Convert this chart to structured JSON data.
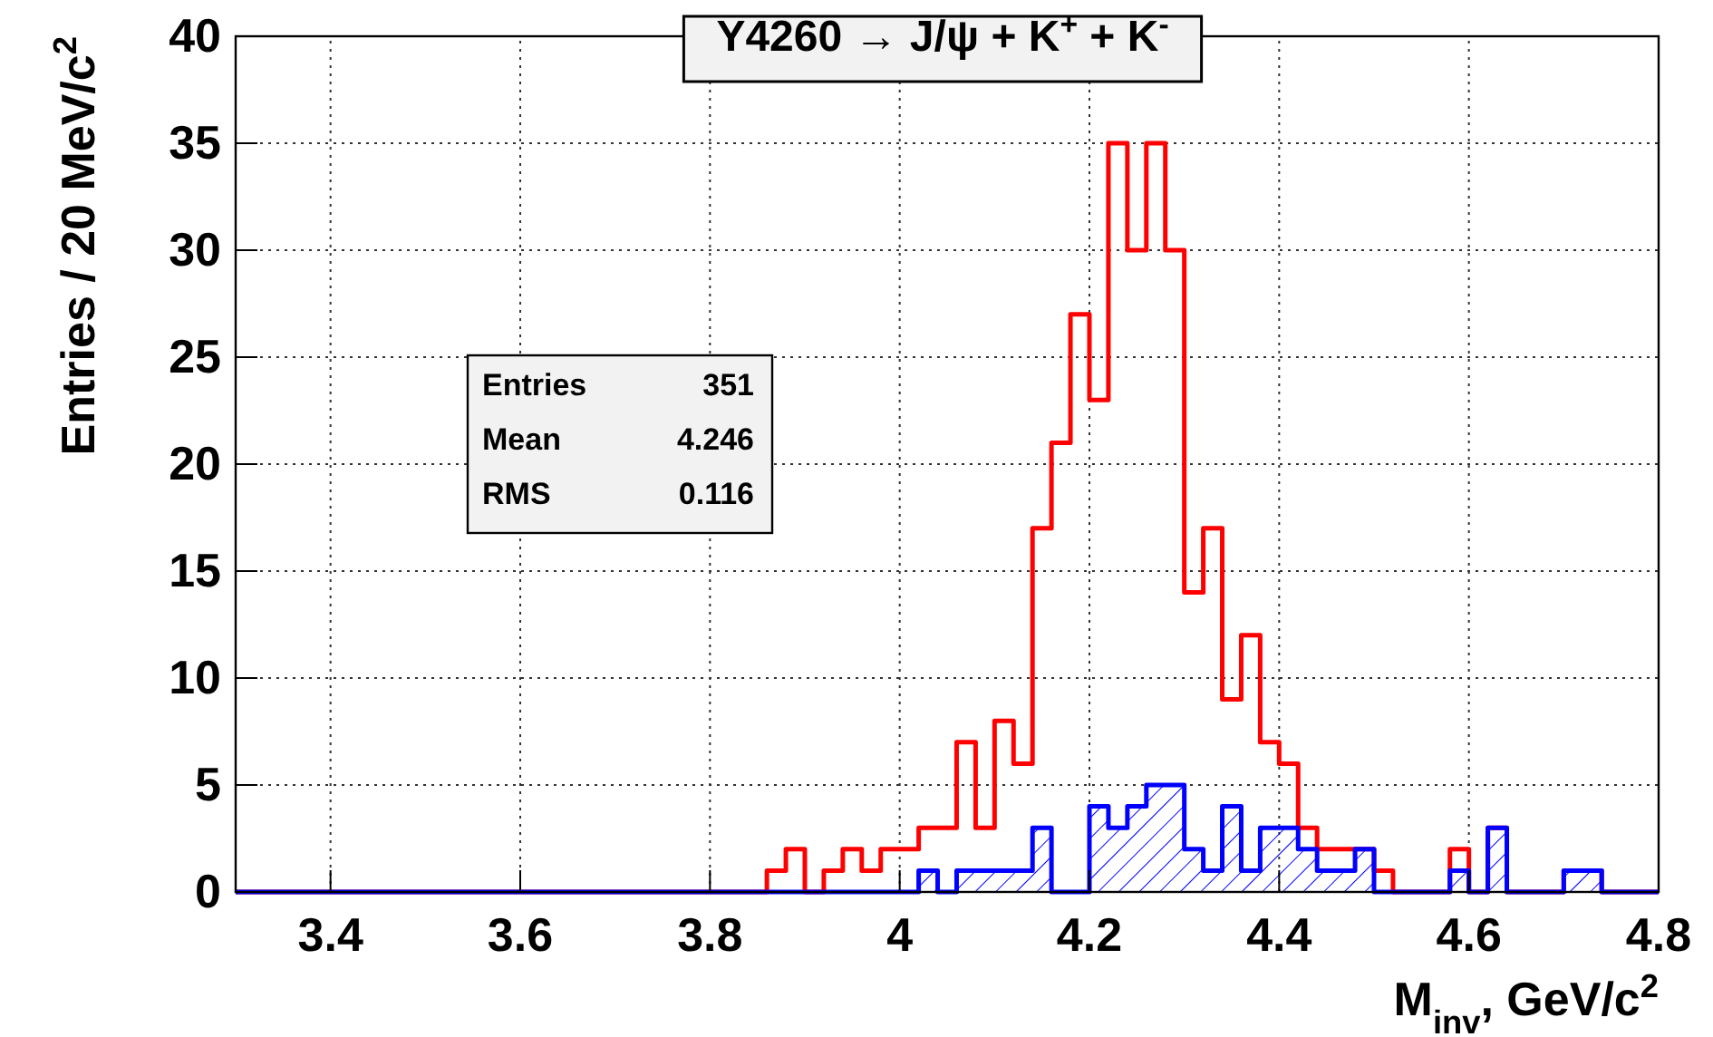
{
  "chart_data": {
    "type": "histogram",
    "title": "Y4260  → J/ψ + K$^{+}$ + K$^{-}$",
    "xlabel": "M$_{inv}$, GeV/c$^{2}$",
    "ylabel": "Entries / 20 MeV/c$^{2}$",
    "bins": [
      3.3,
      3.32,
      3.34,
      3.36,
      3.38,
      3.4,
      3.42,
      3.44,
      3.46,
      3.48,
      3.5,
      3.52,
      3.54,
      3.56,
      3.58,
      3.6,
      3.62,
      3.64,
      3.66,
      3.68,
      3.7,
      3.72,
      3.74,
      3.76,
      3.78,
      3.8,
      3.82,
      3.84,
      3.86,
      3.88,
      3.9,
      3.92,
      3.94,
      3.96,
      3.98,
      4.0,
      4.02,
      4.04,
      4.06,
      4.08,
      4.1,
      4.12,
      4.14,
      4.16,
      4.18,
      4.2,
      4.22,
      4.24,
      4.26,
      4.28,
      4.3,
      4.32,
      4.34,
      4.36,
      4.38,
      4.4,
      4.42,
      4.44,
      4.46,
      4.48,
      4.5,
      4.52,
      4.54,
      4.56,
      4.58,
      4.6,
      4.62,
      4.64,
      4.66,
      4.68,
      4.7,
      4.72,
      4.74,
      4.76,
      4.78,
      4.8
    ],
    "series": [
      {
        "color": "#ff0000",
        "values": [
          0,
          0,
          0,
          0,
          0,
          0,
          0,
          0,
          0,
          0,
          0,
          0,
          0,
          0,
          0,
          0,
          0,
          0,
          0,
          0,
          0,
          0,
          0,
          0,
          0,
          0,
          0,
          0,
          1,
          2,
          0,
          1,
          2,
          1,
          2,
          2,
          3,
          3,
          7,
          3,
          8,
          6,
          17,
          21,
          27,
          23,
          35,
          30,
          35,
          30,
          14,
          17,
          9,
          12,
          7,
          6,
          3,
          2,
          2,
          2,
          1,
          0,
          0,
          0,
          2,
          0,
          3,
          0,
          0,
          0,
          1,
          1,
          0,
          0,
          0
        ]
      },
      {
        "color": "#0000ff",
        "values": [
          0,
          0,
          0,
          0,
          0,
          0,
          0,
          0,
          0,
          0,
          0,
          0,
          0,
          0,
          0,
          0,
          0,
          0,
          0,
          0,
          0,
          0,
          0,
          0,
          0,
          0,
          0,
          0,
          0,
          0,
          0,
          0,
          0,
          0,
          0,
          0,
          1,
          0,
          1,
          1,
          1,
          1,
          3,
          0,
          0,
          4,
          3,
          4,
          5,
          5,
          2,
          1,
          4,
          1,
          3,
          3,
          2,
          1,
          1,
          2,
          0,
          0,
          0,
          0,
          1,
          0,
          3,
          0,
          0,
          0,
          1,
          1,
          0,
          0,
          0
        ]
      }
    ],
    "xlim": [
      3.3,
      4.8
    ],
    "xticks": [
      3.4,
      3.6,
      3.8,
      4,
      4.2,
      4.4,
      4.6,
      4.8
    ],
    "ylim": [
      0,
      40
    ],
    "yticks": [
      0,
      5,
      10,
      15,
      20,
      25,
      30,
      35,
      40
    ],
    "grid": true,
    "annotations": [
      "Entries",
      "351",
      "Mean",
      "4.246",
      "RMS",
      "0.116"
    ]
  }
}
